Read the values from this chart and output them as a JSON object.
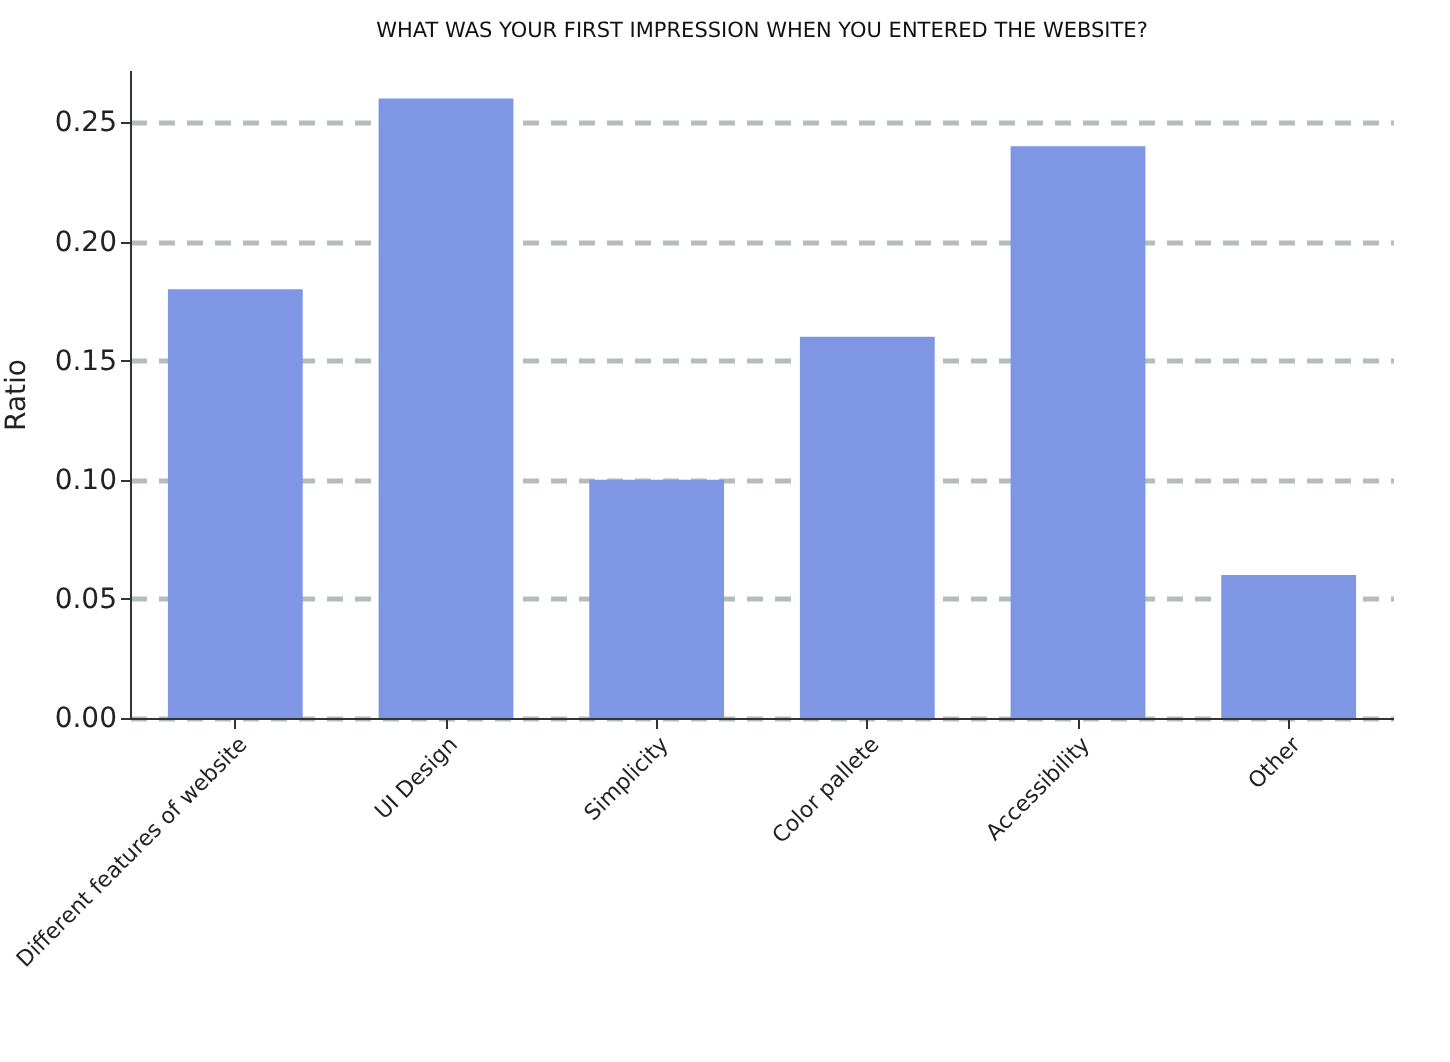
{
  "chart_data": {
    "type": "bar",
    "title": "WHAT WAS YOUR FIRST IMPRESSION WHEN YOU ENTERED THE WEBSITE?",
    "ylabel": "Ratio",
    "categories": [
      "Different features of website",
      "UI Design",
      "Simplicity",
      "Color pallete",
      "Accessibility",
      "Other"
    ],
    "values": [
      0.18,
      0.26,
      0.1,
      0.16,
      0.24,
      0.06
    ],
    "color": "#7f96e4",
    "ylim": [
      0,
      0.272
    ],
    "yticks": [
      {
        "value": 0,
        "label": "0.00"
      },
      {
        "value": 0.05,
        "label": "0.05"
      },
      {
        "value": 0.1,
        "label": "0.10"
      },
      {
        "value": 0.15,
        "label": "0.15"
      },
      {
        "value": 0.2,
        "label": "0.20"
      },
      {
        "value": 0.25,
        "label": "0.25"
      }
    ],
    "grid": "y",
    "line_style": "dashed"
  }
}
